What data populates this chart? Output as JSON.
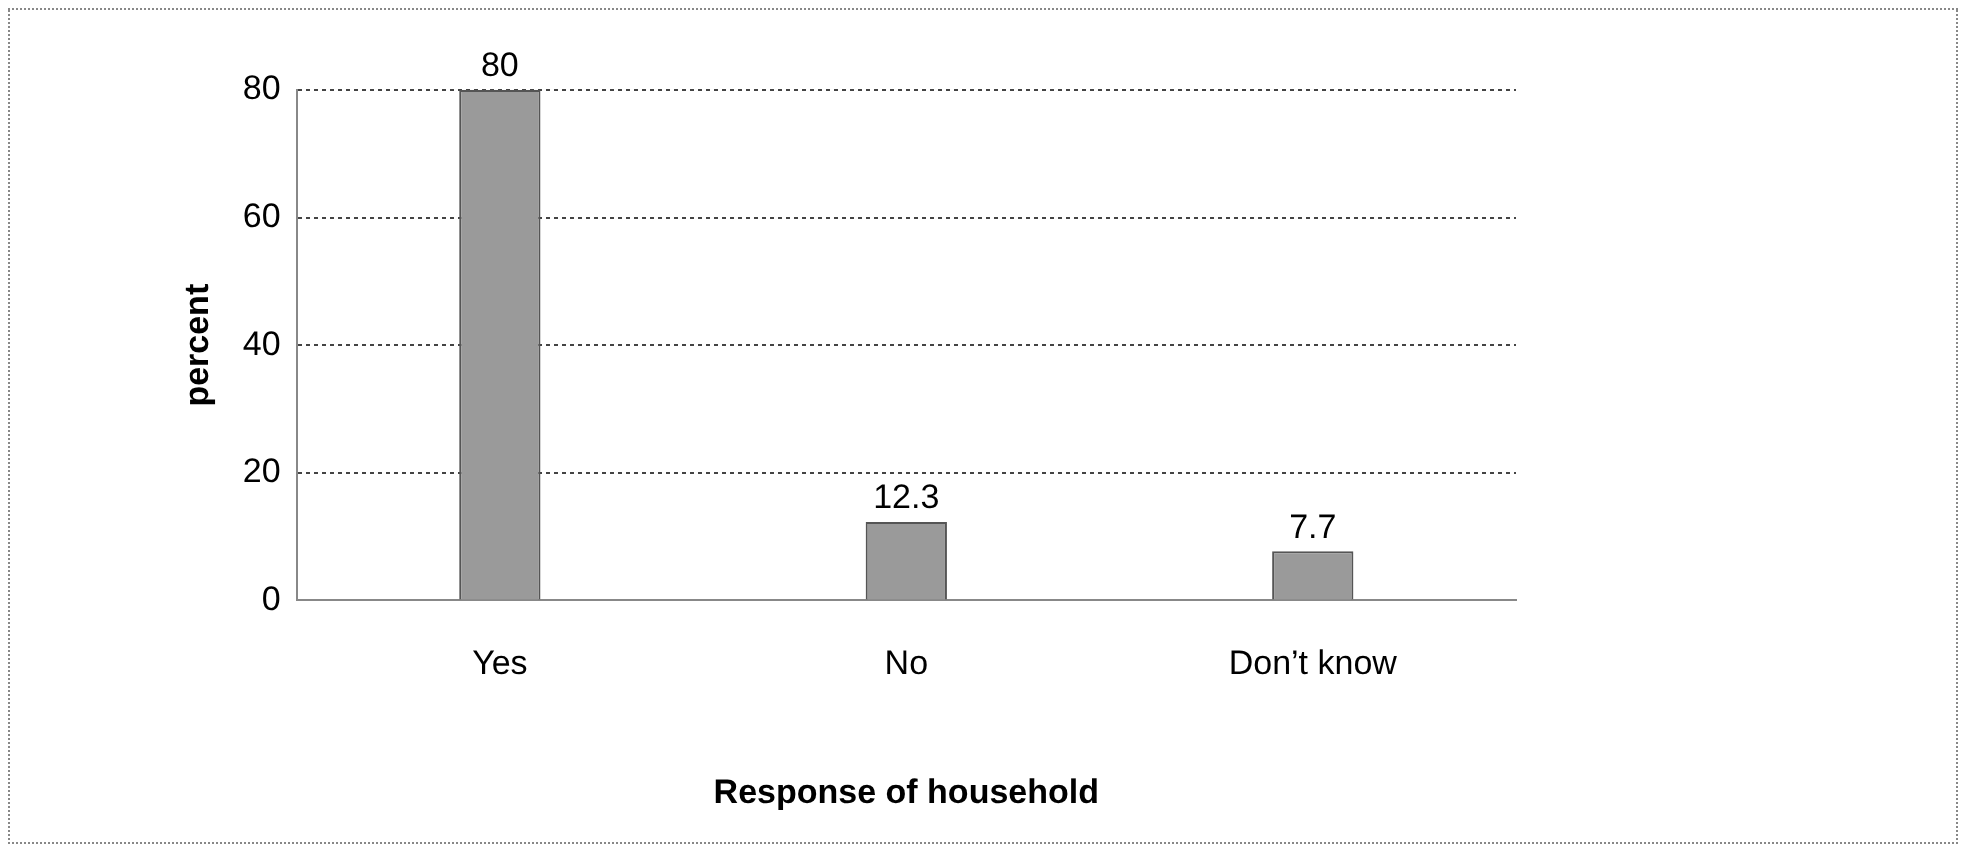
{
  "chart_data": {
    "type": "bar",
    "xlabel": "Response of household",
    "ylabel": "percent",
    "categories": [
      "Yes",
      "No",
      "Don’t know"
    ],
    "values": [
      80,
      12.3,
      7.7
    ],
    "color": "#9a9a9a",
    "ylim": [
      0,
      80
    ],
    "yticks": [
      0,
      20,
      40,
      60,
      80
    ],
    "grid": "y",
    "data_labels": true,
    "legend": false
  }
}
